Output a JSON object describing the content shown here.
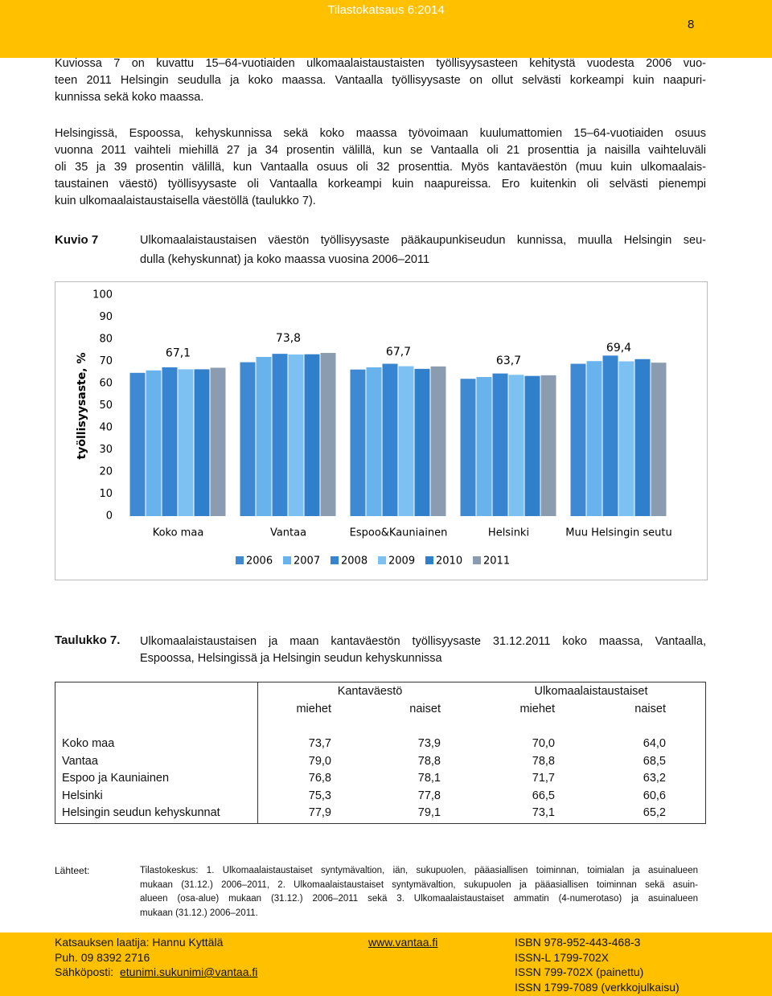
{
  "header": {
    "title": "Tilastokatsaus 6:2014",
    "page": "8"
  },
  "intro": {
    "paragraphs": [
      [
        "Kuviossa 7 on kuvattu 15–64-vuotiaiden ulkomaalaistaustaisten työllisyysasteen kehitystä vuodesta 2006 vuo-",
        "teen 2011 Helsingin seudulla ja koko maassa. Vantaalla työllisyysaste on ollut selvästi korkeampi kuin naapuri-",
        "kunnissa sekä koko maassa."
      ],
      [
        "Helsingissä, Espoossa, kehyskunnissa sekä koko maassa työvoimaan kuulumattomien 15–64-vuotiaiden osuus",
        "vuonna 2011 vaihteli miehillä 27 ja 34 prosentin välillä, kun se Vantaalla oli 21 prosenttia ja naisilla vaihteluväli",
        "oli 35 ja 39 prosentin välillä, kun Vantaalla osuus oli 32 prosenttia. Myös kantaväestön (muu kuin ulkomaalais-",
        "taustainen väestö) työllisyysaste oli Vantaalla korkeampi kuin naapureissa. Ero kuitenkin oli selvästi pienempi",
        "kuin ulkomaalaistaustaisella väestöllä (taulukko 7)."
      ]
    ]
  },
  "figure": {
    "label": "Kuvio 7",
    "caption_lines": [
      "Ulkomaalaistaustaisen väestön työllisyysaste pääkaupunkiseudun kunnissa, muulla Helsingin seu-",
      "dulla (kehyskunnat) ja koko maassa vuosina 2006–2011"
    ]
  },
  "chart_data": {
    "type": "bar",
    "y_label": "työllisyysaste, %",
    "categories": [
      "Koko maa",
      "Vantaa",
      "Espoo&Kauniainen",
      "Helsinki",
      "Muu Helsingin seutu"
    ],
    "series": [
      {
        "name": "2006",
        "color": "#3f88d2",
        "values": [
          64.8,
          69.6,
          66.3,
          62.1,
          68.9
        ]
      },
      {
        "name": "2007",
        "color": "#69b3ec",
        "values": [
          65.9,
          72.0,
          67.3,
          62.9,
          70.1
        ]
      },
      {
        "name": "2008",
        "color": "#3784d0",
        "values": [
          67.3,
          73.4,
          68.9,
          64.5,
          72.6
        ]
      },
      {
        "name": "2009",
        "color": "#7cc1f2",
        "values": [
          66.4,
          73.1,
          67.8,
          63.9,
          70.0
        ]
      },
      {
        "name": "2010",
        "color": "#2f7fcb",
        "values": [
          66.4,
          73.2,
          66.6,
          63.4,
          71.0
        ]
      },
      {
        "name": "2011",
        "color": "#8c9cb0",
        "values": [
          67.1,
          73.8,
          67.7,
          63.7,
          69.4
        ],
        "value_labels": [
          "67,1",
          "73,8",
          "67,7",
          "63,7",
          "69,4"
        ]
      }
    ],
    "ylim": [
      0,
      100
    ],
    "yticks": [
      0,
      10,
      20,
      30,
      40,
      50,
      60,
      70,
      80,
      90,
      100
    ],
    "grid": false,
    "legend": "bottom"
  },
  "table_caption": {
    "label": "Taulukko 7.",
    "lines": [
      "Ulkomaalaistaustaisen ja maan kantaväestön työllisyysaste 31.12.2011 koko maassa, Vantaalla,",
      "Espoossa, Helsingissä ja Helsingin seudun kehyskunnissa"
    ]
  },
  "table": {
    "group_headers": [
      "Kantaväestö",
      "Ulkomaalaistaustaiset"
    ],
    "sub_headers": [
      "miehet",
      "naiset",
      "miehet",
      "naiset"
    ],
    "rows": [
      [
        "Koko maa",
        "73,7",
        "73,9",
        "70,0",
        "64,0"
      ],
      [
        "Vantaa",
        "79,0",
        "78,8",
        "78,8",
        "68,5"
      ],
      [
        "Espoo ja Kauniainen",
        "76,8",
        "78,1",
        "71,7",
        "63,2"
      ],
      [
        "Helsinki",
        "75,3",
        "77,8",
        "66,5",
        "60,6"
      ],
      [
        "Helsingin seudun kehyskunnat",
        "77,9",
        "79,1",
        "73,1",
        "65,2"
      ]
    ]
  },
  "sources": {
    "label": "Lähteet:",
    "lines": [
      "Tilastokeskus: 1. Ulkomaalaistaustaiset syntymävaltion, iän, sukupuolen, pääasiallisen toiminnan, toimialan ja asuinalueen",
      "mukaan (31.12.) 2006–2011, 2. Ulkomaalaistaustaiset syntymävaltion, sukupuolen ja pääasiallisen toiminnan sekä asuin-",
      "alueen (osa-alue) mukaan (31.12.) 2006–2011 sekä 3. Ulkomaalaistaustaiset ammatin (4-numerotaso) ja asuinalueen",
      "mukaan (31.12.) 2006–2011."
    ]
  },
  "footer": {
    "left": [
      "Katsauksen laatija: Hannu Kyttälä",
      "Puh. 09 8392 2716"
    ],
    "email_label": "Sähköposti:",
    "email": "etunimi.sukunimi@vantaa.fi",
    "center": "www.vantaa.fi",
    "right": [
      "ISBN 978-952-443-468-3",
      "ISSN-L 1799-702X",
      "ISSN 799-702X (painettu)",
      "ISSN 1799-7089 (verkkojulkaisu)"
    ]
  }
}
